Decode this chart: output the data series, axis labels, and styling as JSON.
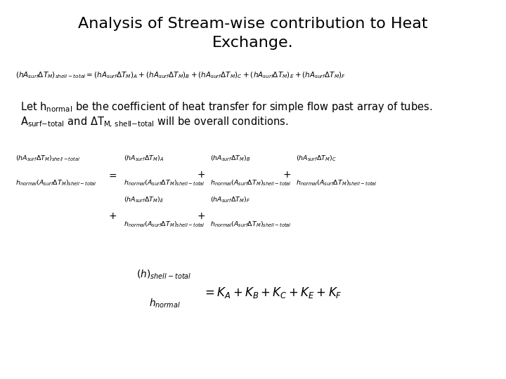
{
  "title_line1": "Analysis of Stream-wise contribution to Heat",
  "title_line2": "Exchange.",
  "title_fontsize": 16,
  "bg_color": "#ffffff",
  "text_color": "#000000",
  "math_fs": 7.5,
  "text_fs": 10.5
}
